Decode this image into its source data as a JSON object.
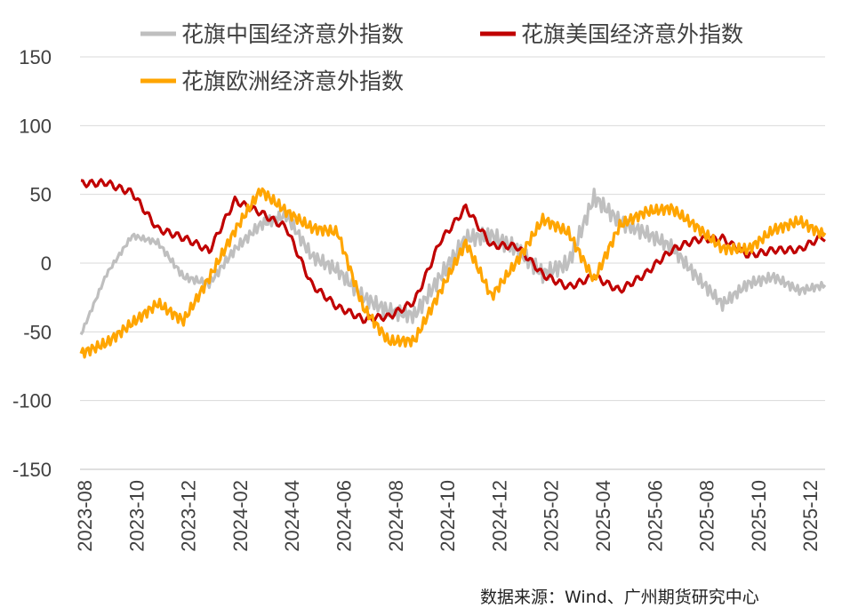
{
  "chart_data": {
    "type": "line",
    "title": "",
    "xlabel": "",
    "ylabel": "",
    "ylim": [
      -150,
      150
    ],
    "yticks": [
      150,
      100,
      50,
      0,
      -50,
      -100,
      -150
    ],
    "grid": "horizontal",
    "legend_position": "top",
    "x_tick_labels": [
      "2023-08",
      "2023-10",
      "2023-12",
      "2024-02",
      "2024-04",
      "2024-06",
      "2024-08",
      "2024-10",
      "2024-12",
      "2025-02",
      "2025-04",
      "2025-06",
      "2025-08",
      "2025-10",
      "2025-12"
    ],
    "x": [
      "2023-08",
      "2023-09",
      "2023-10",
      "2023-11",
      "2023-12",
      "2024-01",
      "2024-02",
      "2024-03",
      "2024-04",
      "2024-05",
      "2024-06",
      "2024-07",
      "2024-08",
      "2024-09",
      "2024-10",
      "2024-11",
      "2024-12",
      "2025-01",
      "2025-02",
      "2025-03",
      "2025-04",
      "2025-05",
      "2025-06",
      "2025-07",
      "2025-08",
      "2025-09",
      "2025-10",
      "2025-11",
      "2025-12",
      "2026-01"
    ],
    "series": [
      {
        "name": "花旗中国经济意外指数",
        "color": "#BFBFBF",
        "values": [
          -52,
          -8,
          20,
          15,
          -10,
          -15,
          10,
          28,
          35,
          5,
          -5,
          -25,
          -35,
          -38,
          -10,
          18,
          20,
          10,
          -8,
          0,
          48,
          30,
          22,
          12,
          -10,
          -30,
          -15,
          -10,
          -20,
          -16
        ]
      },
      {
        "name": "花旗美国经济意外指数",
        "color": "#C00000",
        "values": [
          58,
          62,
          55,
          25,
          15,
          5,
          45,
          40,
          30,
          -15,
          -35,
          -45,
          -40,
          -25,
          20,
          42,
          10,
          8,
          -10,
          -15,
          -5,
          -18,
          -10,
          5,
          15,
          20,
          10,
          12,
          8,
          16
        ]
      },
      {
        "name": "花旗欧洲经济意外指数",
        "color": "#FFA500",
        "values": [
          -68,
          -60,
          -45,
          -30,
          -42,
          -10,
          25,
          55,
          40,
          28,
          25,
          -30,
          -55,
          -55,
          -20,
          15,
          -25,
          0,
          30,
          20,
          -15,
          25,
          35,
          38,
          25,
          10,
          10,
          25,
          32,
          22
        ]
      }
    ]
  },
  "source_text": "数据来源：Wind、广州期货研究中心"
}
